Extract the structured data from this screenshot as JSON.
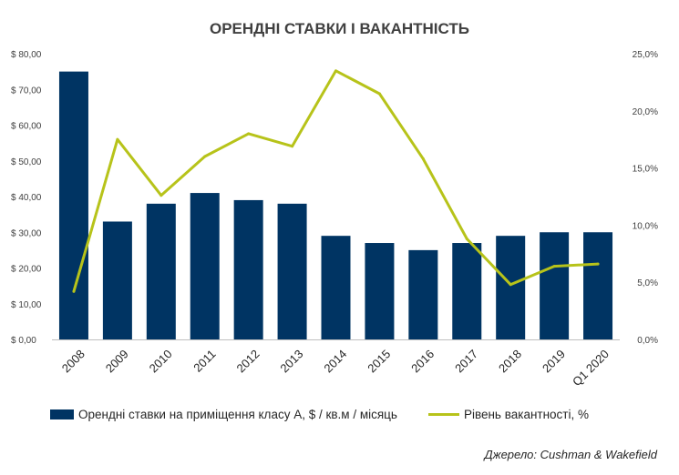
{
  "chart_data": {
    "type": "bar",
    "title": "ОРЕНДНІ СТАВКИ І ВАКАНТНІСТЬ",
    "categories": [
      "2008",
      "2009",
      "2010",
      "2011",
      "2012",
      "2013",
      "2014",
      "2015",
      "2016",
      "2017",
      "2018",
      "2019",
      "Q1 2020"
    ],
    "series": [
      {
        "name": "Орендні ставки на приміщення класу А, $ / кв.м / місяць",
        "type": "bar",
        "axis": "left",
        "color": "#003463",
        "values": [
          75,
          33,
          38,
          41,
          39,
          38,
          29,
          27,
          25,
          27,
          29,
          30,
          30
        ]
      },
      {
        "name": "Рівень вакантності, %",
        "type": "line",
        "axis": "right",
        "color": "#b7c31a",
        "values": [
          4.2,
          17.5,
          12.6,
          16.0,
          18.0,
          16.9,
          23.5,
          21.5,
          15.8,
          8.8,
          4.8,
          6.4,
          6.6
        ]
      }
    ],
    "y_left": {
      "min": 0,
      "max": 80,
      "step": 10,
      "tick_labels": [
        "$ 0,00",
        "$ 10,00",
        "$ 20,00",
        "$ 30,00",
        "$ 40,00",
        "$ 50,00",
        "$ 60,00",
        "$ 70,00",
        "$ 80,00"
      ]
    },
    "y_right": {
      "min": 0,
      "max": 25,
      "step": 5,
      "tick_labels": [
        "0,0%",
        "5,0%",
        "10,0%",
        "15,0%",
        "20,0%",
        "25,0%"
      ]
    },
    "grid": false,
    "legend_position": "bottom",
    "source": "Джерело: Cushman & Wakefield"
  }
}
